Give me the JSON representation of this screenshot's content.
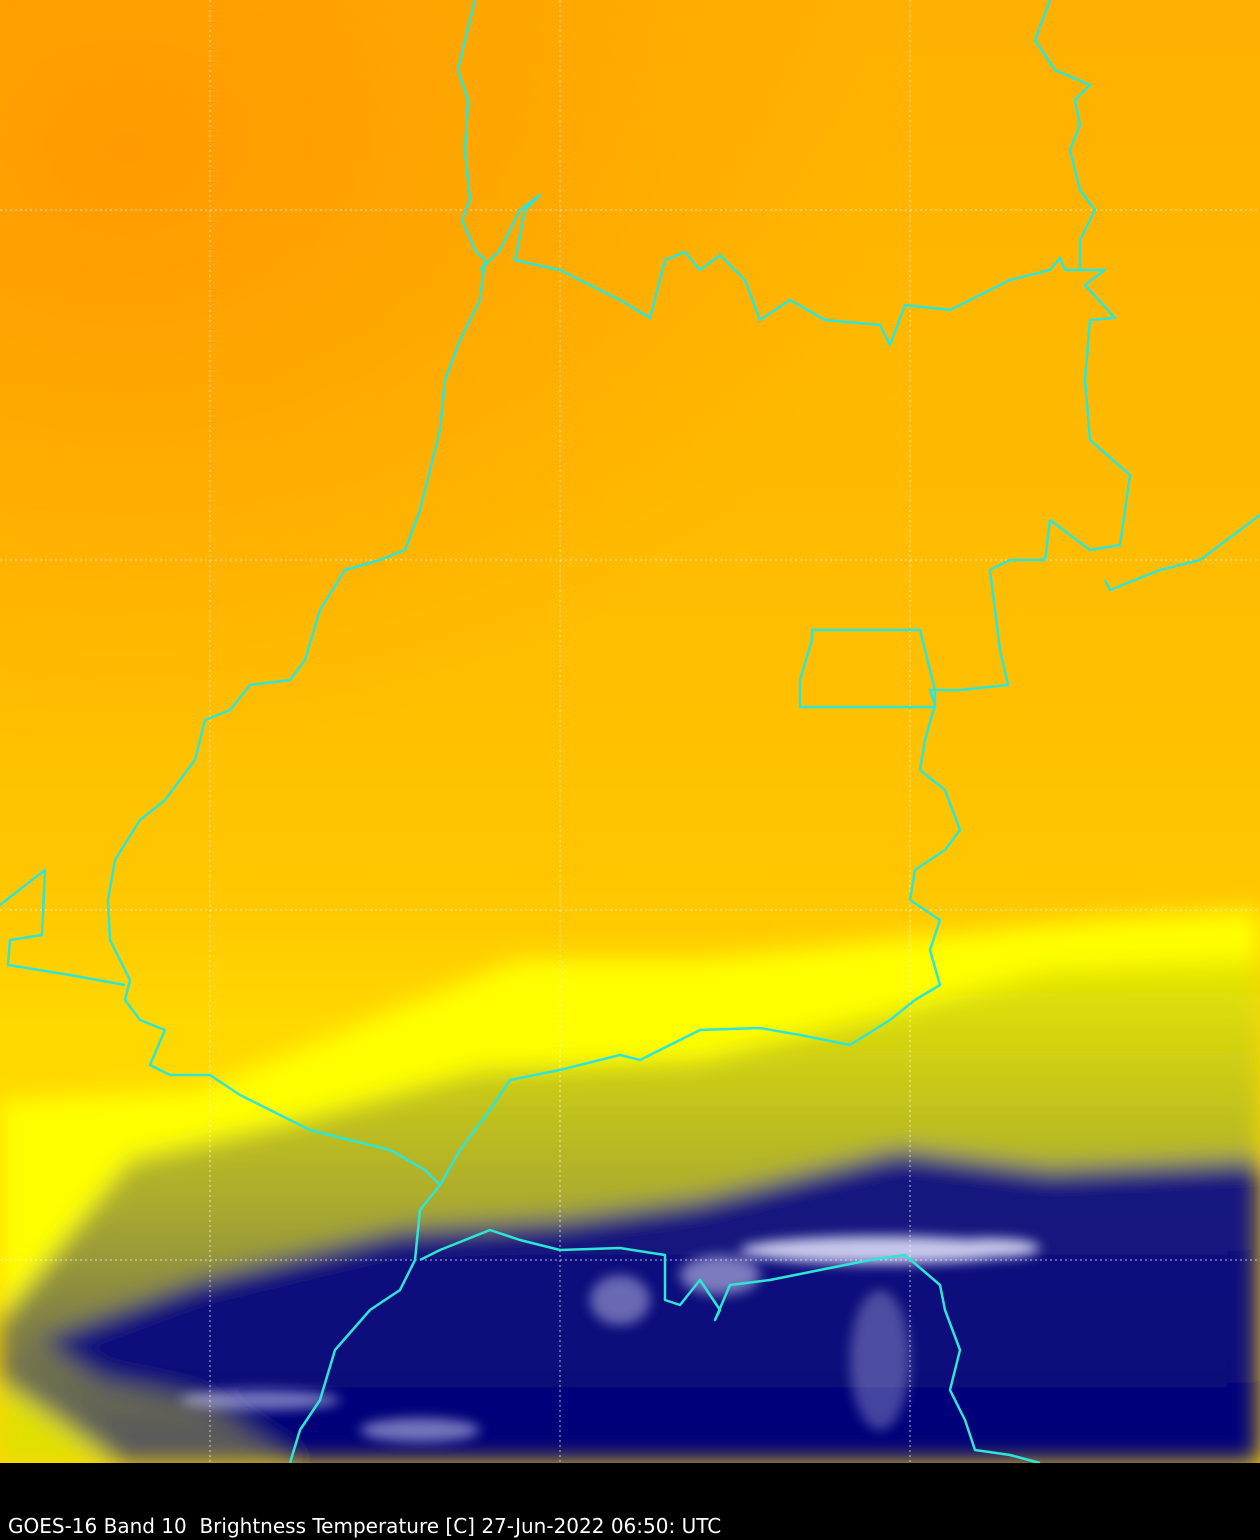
{
  "caption": "GOES-16 Band 10  Brightness Temperature [C] 27-Jun-2022 06:50: UTC"
}
